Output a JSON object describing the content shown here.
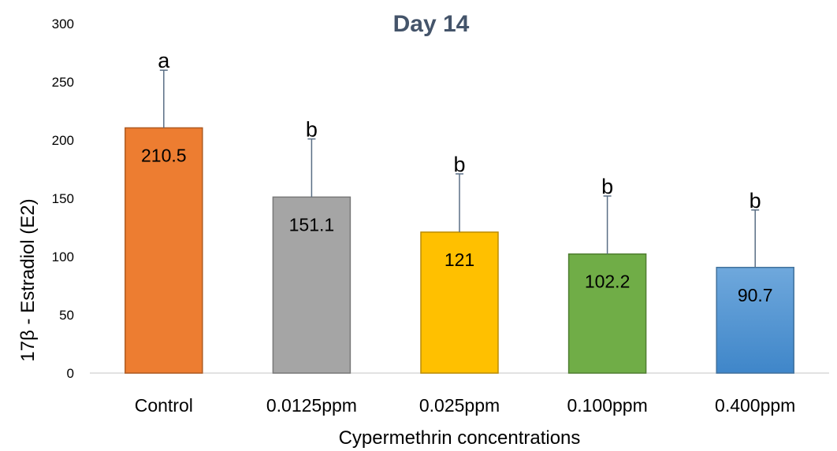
{
  "chart_data": {
    "type": "bar",
    "title": "Day 14",
    "xlabel": "Cypermethrin concentrations",
    "ylabel": "17β - Estradiol (E2)",
    "ylim": [
      0,
      300
    ],
    "yticks": [
      0,
      50,
      100,
      150,
      200,
      250,
      300
    ],
    "grid": false,
    "categories": [
      "Control",
      "0.0125ppm",
      "0.025ppm",
      "0.100ppm",
      "0.400ppm"
    ],
    "values": [
      210.5,
      151.1,
      121,
      102.2,
      90.7
    ],
    "value_labels": [
      "210.5",
      "151.1",
      "121",
      "102.2",
      "90.7"
    ],
    "error_upper": [
      260,
      201,
      171,
      152,
      140
    ],
    "significance": [
      "a",
      "b",
      "b",
      "b",
      "b"
    ],
    "colors": {
      "title": "#44546A",
      "axis": "#D9D9D9",
      "error_bar": "#5A6E85",
      "bar_fills": [
        "#ED7D31",
        "#A5A5A5",
        "#FFC000",
        "#70AD47",
        "#5B9BD5"
      ],
      "bar_strokes": [
        "#AE5A21",
        "#787878",
        "#BC8C00",
        "#507E32",
        "#41719C"
      ]
    }
  }
}
